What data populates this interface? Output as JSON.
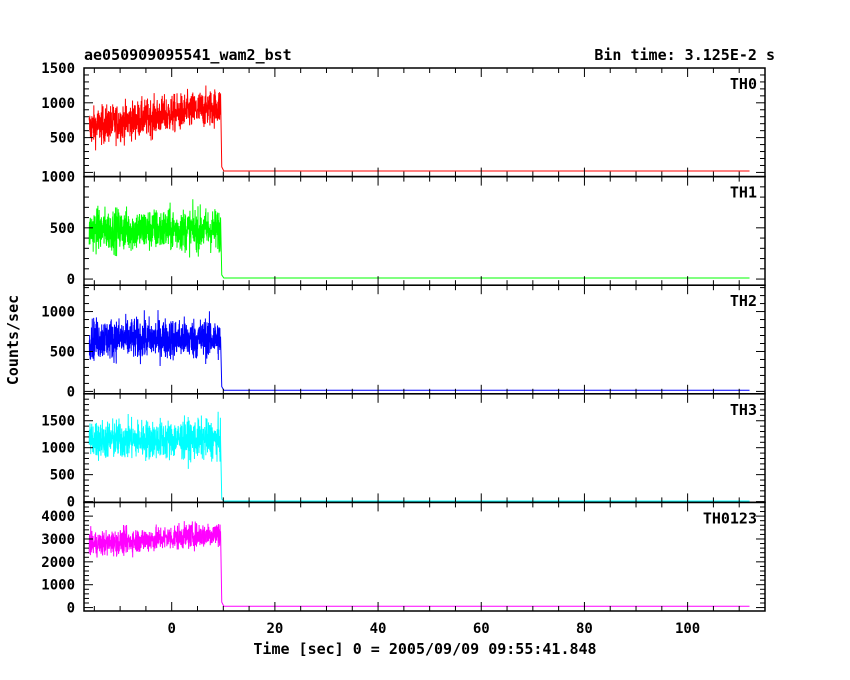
{
  "chart_data": {
    "type": "line",
    "title": "ae050909095541_wam2_bst",
    "bin_time_label": "Bin time: 3.125E-2 s",
    "xlabel": "Time [sec] 0 = 2005/09/09 09:55:41.848",
    "ylabel": "Counts/sec",
    "xlim": [
      -17,
      115
    ],
    "xticks": [
      0,
      20,
      40,
      60,
      80,
      100
    ],
    "burst_end": 9.5,
    "burst_start": -16,
    "data_end": 112,
    "panels": [
      {
        "name": "TH0",
        "color": "#ff0000",
        "ylim": [
          -60,
          1500
        ],
        "yticks": [
          500,
          1000,
          1500
        ],
        "burst_mean": 800,
        "burst_trend": 150,
        "burst_noise": 220,
        "background": 20
      },
      {
        "name": "TH1",
        "color": "#00ff00",
        "ylim": [
          -60,
          1000
        ],
        "yticks": [
          0,
          500,
          1000
        ],
        "burst_mean": 480,
        "burst_trend": 0,
        "burst_noise": 170,
        "background": 10
      },
      {
        "name": "TH2",
        "color": "#0000ff",
        "ylim": [
          -30,
          1330
        ],
        "yticks": [
          0,
          500,
          1000
        ],
        "burst_mean": 660,
        "burst_trend": 0,
        "burst_noise": 210,
        "background": 15
      },
      {
        "name": "TH3",
        "color": "#00ffff",
        "ylim": [
          -15,
          2000
        ],
        "yticks": [
          0,
          500,
          1000,
          1500
        ],
        "burst_mean": 1150,
        "burst_trend": 0,
        "burst_noise": 300,
        "background": 12
      },
      {
        "name": "TH0123",
        "color": "#ff00ff",
        "ylim": [
          -150,
          4600
        ],
        "yticks": [
          0,
          1000,
          2000,
          3000,
          4000
        ],
        "burst_mean": 3000,
        "burst_trend": 250,
        "burst_noise": 450,
        "background": 60
      }
    ]
  }
}
